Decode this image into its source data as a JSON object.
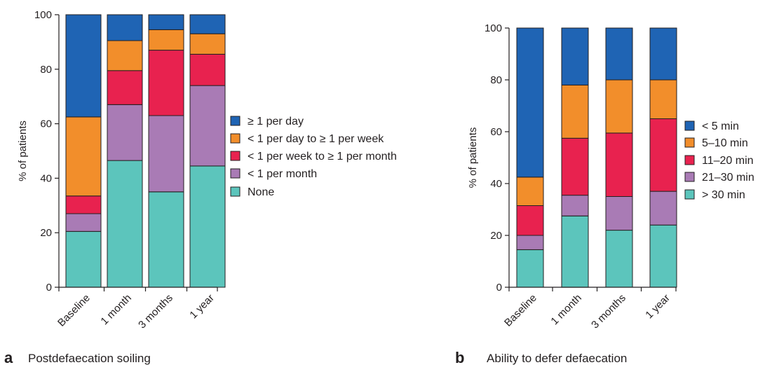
{
  "colors": {
    "blue": "#1f64b4",
    "orange": "#f28e2b",
    "red": "#e8224f",
    "purple": "#a97bb5",
    "teal": "#5cc5bc",
    "axis": "#231f20"
  },
  "chart_data": [
    {
      "type": "bar",
      "stacked": true,
      "letter": "a",
      "caption": "Postdefaecation soiling",
      "ylabel": "% of patients",
      "xlabel": "",
      "ylim": [
        0,
        100
      ],
      "yticks": [
        0,
        20,
        40,
        60,
        80,
        100
      ],
      "grid": false,
      "legend_position": "right",
      "categories": [
        "Baseline",
        "1 month",
        "3 months",
        "1 year"
      ],
      "series": [
        {
          "name": "None",
          "color": "teal",
          "values": [
            20.5,
            46.5,
            35,
            44.5
          ]
        },
        {
          "name": "< 1 per month",
          "color": "purple",
          "values": [
            6.5,
            20.5,
            28,
            29.5
          ]
        },
        {
          "name": "< 1 per week to ≥ 1 per month",
          "color": "red",
          "values": [
            6.5,
            12.5,
            24,
            11.5
          ]
        },
        {
          "name": "< 1 per day to ≥ 1 per week",
          "color": "orange",
          "values": [
            29,
            11,
            7.5,
            7.5
          ]
        },
        {
          "name": "≥ 1 per day",
          "color": "blue",
          "values": [
            37.5,
            9.5,
            5.5,
            7
          ]
        }
      ]
    },
    {
      "type": "bar",
      "stacked": true,
      "letter": "b",
      "caption": "Ability to defer defaecation",
      "ylabel": "% of patients",
      "xlabel": "",
      "ylim": [
        0,
        100
      ],
      "yticks": [
        0,
        20,
        40,
        60,
        80,
        100
      ],
      "grid": false,
      "legend_position": "right",
      "categories": [
        "Baseline",
        "1 month",
        "3 months",
        "1 year"
      ],
      "series": [
        {
          "name": "> 30 min",
          "color": "teal",
          "values": [
            14.5,
            27.5,
            22,
            24
          ]
        },
        {
          "name": "21–30 min",
          "color": "purple",
          "values": [
            5.5,
            8,
            13,
            13
          ]
        },
        {
          "name": "11–20 min",
          "color": "red",
          "values": [
            11.5,
            22,
            24.5,
            28
          ]
        },
        {
          "name": "5–10 min",
          "color": "orange",
          "values": [
            11,
            20.5,
            20.5,
            15
          ]
        },
        {
          "name": "< 5 min",
          "color": "blue",
          "values": [
            57.5,
            22,
            20,
            20
          ]
        }
      ]
    }
  ]
}
